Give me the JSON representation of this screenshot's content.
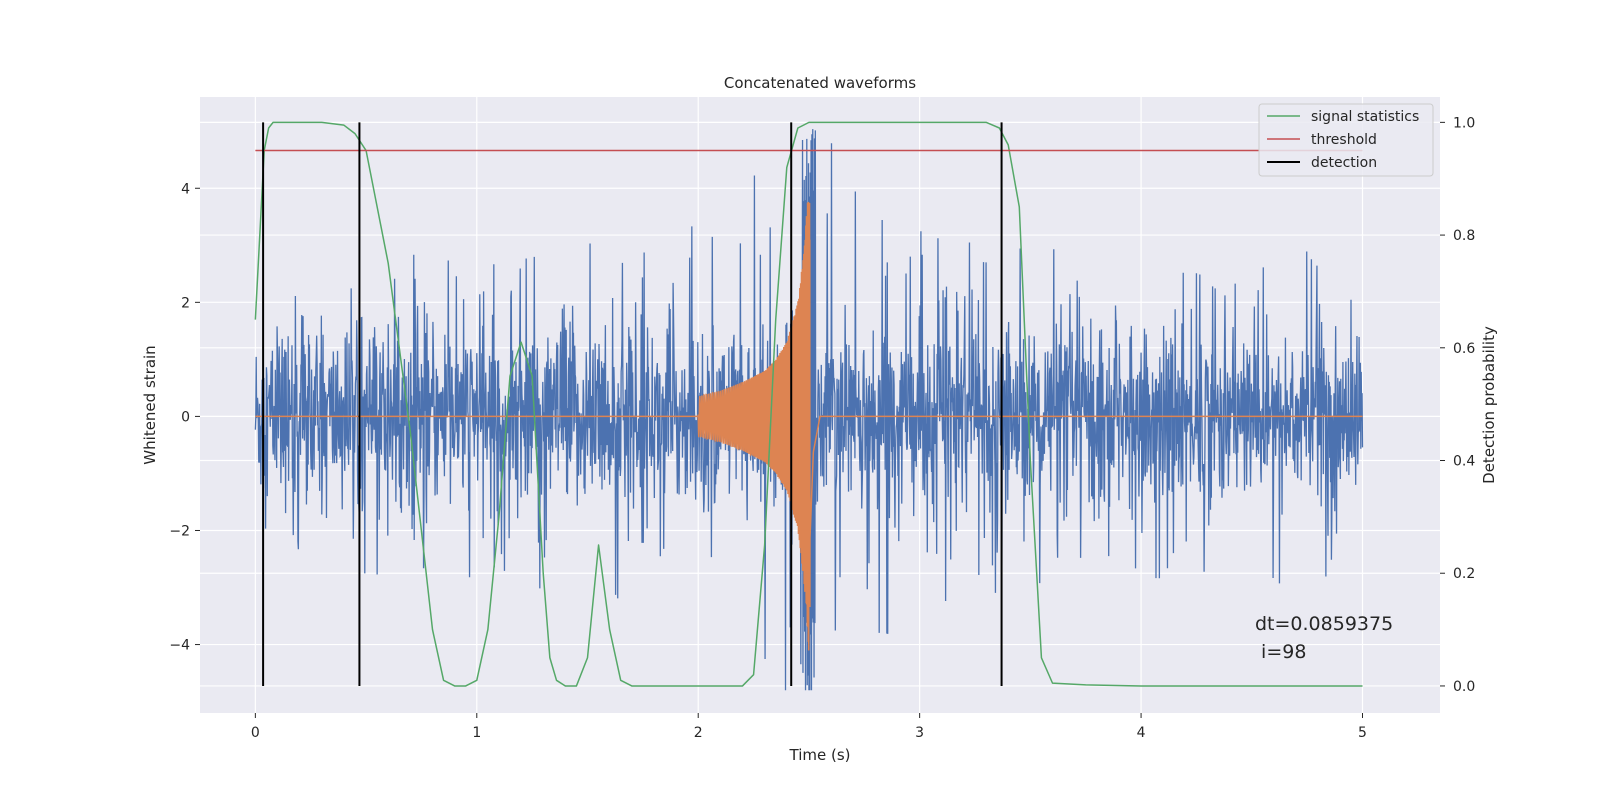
{
  "chart_data": {
    "type": "line",
    "title": "Concatenated waveforms",
    "xlabel": "Time (s)",
    "ylabel": "Whitened strain",
    "ylabel_right": "Detection probability",
    "xlim": [
      -0.25,
      5.35
    ],
    "ylim": [
      -5.2,
      5.6
    ],
    "ylim_right": [
      -0.048,
      1.045
    ],
    "xticks": [
      0,
      1,
      2,
      3,
      4,
      5
    ],
    "yticks": [
      -4,
      -2,
      0,
      2,
      4
    ],
    "yticks_right": [
      0.0,
      0.2,
      0.4,
      0.6,
      0.8,
      1.0
    ],
    "xtick_labels": [
      "0",
      "1",
      "2",
      "3",
      "4",
      "5"
    ],
    "ytick_labels": [
      "−4",
      "−2",
      "0",
      "2",
      "4"
    ],
    "ytick_labels_right": [
      "0.0",
      "0.2",
      "0.4",
      "0.6",
      "0.8",
      "1.0"
    ],
    "grid": true,
    "legend_position": "top-right",
    "annotation": [
      "dt=0.0859375",
      " i=98"
    ],
    "colors": {
      "strain": "#4c72b0",
      "template": "#dd8452",
      "statistics": "#55a868",
      "threshold": "#c44e52",
      "detection": "#000000",
      "background": "#eaeaf2"
    },
    "series": [
      {
        "name": "",
        "axis": "left",
        "description_kind": "noise",
        "envelope": [
          [
            0.0,
            2.0
          ],
          [
            0.5,
            2.9
          ],
          [
            1.0,
            3.0
          ],
          [
            1.5,
            3.2
          ],
          [
            2.0,
            3.4
          ],
          [
            2.5,
            5.3
          ],
          [
            3.0,
            3.3
          ],
          [
            3.5,
            3.1
          ],
          [
            4.0,
            3.0
          ],
          [
            4.5,
            3.0
          ],
          [
            5.0,
            3.0
          ]
        ]
      },
      {
        "name": "",
        "axis": "left",
        "description_kind": "chirp",
        "x": [
          2.0,
          2.1,
          2.2,
          2.3,
          2.35,
          2.4,
          2.45,
          2.48,
          2.5,
          2.52,
          2.55
        ],
        "amplitude": [
          0.35,
          0.45,
          0.6,
          0.8,
          1.0,
          1.3,
          2.0,
          3.0,
          4.2,
          1.0,
          0.0
        ]
      },
      {
        "name": "signal statistics",
        "axis": "right",
        "x": [
          0.0,
          0.02,
          0.04,
          0.06,
          0.08,
          0.1,
          0.15,
          0.3,
          0.4,
          0.45,
          0.5,
          0.6,
          0.7,
          0.8,
          0.85,
          0.9,
          0.95,
          1.0,
          1.05,
          1.1,
          1.15,
          1.2,
          1.25,
          1.3,
          1.33,
          1.36,
          1.4,
          1.45,
          1.5,
          1.55,
          1.6,
          1.65,
          1.7,
          1.8,
          2.0,
          2.2,
          2.25,
          2.3,
          2.35,
          2.4,
          2.45,
          2.5,
          2.7,
          3.0,
          3.3,
          3.36,
          3.4,
          3.45,
          3.5,
          3.55,
          3.6,
          3.75,
          4.0,
          4.5,
          5.0
        ],
        "y": [
          0.65,
          0.8,
          0.95,
          0.99,
          1.0,
          1.0,
          1.0,
          1.0,
          0.995,
          0.98,
          0.95,
          0.75,
          0.45,
          0.1,
          0.01,
          0.0,
          0.0,
          0.01,
          0.1,
          0.3,
          0.55,
          0.61,
          0.55,
          0.2,
          0.05,
          0.01,
          0.0,
          0.0,
          0.05,
          0.25,
          0.1,
          0.01,
          0.0,
          0.0,
          0.0,
          0.0,
          0.02,
          0.25,
          0.65,
          0.92,
          0.99,
          1.0,
          1.0,
          1.0,
          1.0,
          0.99,
          0.96,
          0.85,
          0.4,
          0.05,
          0.005,
          0.002,
          0.0,
          0.0,
          0.0
        ]
      },
      {
        "name": "threshold",
        "axis": "right",
        "x": [
          0.0,
          5.0
        ],
        "y": [
          0.95,
          0.95
        ]
      },
      {
        "name": "detection",
        "axis": "right",
        "kind": "vlines",
        "x": [
          0.035,
          0.47,
          2.42,
          3.37
        ],
        "y_range": [
          0.0,
          1.0
        ]
      }
    ]
  }
}
